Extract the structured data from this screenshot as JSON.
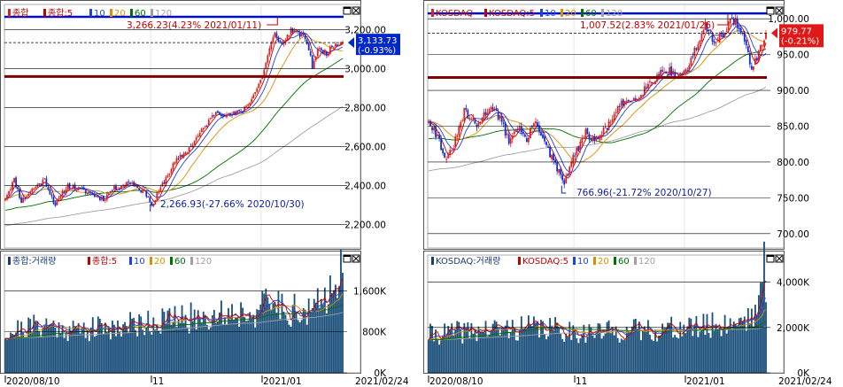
{
  "chart_data": [
    {
      "type": "candlestick",
      "panel": "left-price",
      "legend": {
        "main": "종합",
        "ma_prefix": "종합:5",
        "ma": [
          "10",
          "20",
          "60",
          "120"
        ]
      },
      "colors": {
        "up": "#e02020",
        "down": "#1030d0",
        "ma5": "#c00000",
        "ma10": "#2040e0",
        "ma20": "#d89000",
        "ma60": "#007000",
        "ma120": "#a0a0a0",
        "hline_blue": "#0010c0",
        "hline_red": "#800000"
      },
      "y_ticks": [
        "3,200.00",
        "3,000.00",
        "2,800.00",
        "2,600.00",
        "2,400.00",
        "2,200.00"
      ],
      "ylim": [
        2080,
        3330
      ],
      "high_annotation": "3,266.23(4.23% 2021/01/11)",
      "low_annotation": "2,266.93(-27.66% 2020/10/30)",
      "current": {
        "price": "3,133.73",
        "change": "(-0.93%)"
      },
      "hlines": [
        3266.23,
        2960
      ],
      "x_labels": [
        "2020/08/10",
        "11",
        "2021/01",
        "2021/02/24"
      ],
      "keyframes": [
        [
          0,
          2340
        ],
        [
          5,
          2430
        ],
        [
          9,
          2320
        ],
        [
          15,
          2380
        ],
        [
          22,
          2430
        ],
        [
          28,
          2300
        ],
        [
          35,
          2400
        ],
        [
          45,
          2370
        ],
        [
          55,
          2330
        ],
        [
          60,
          2380
        ],
        [
          70,
          2420
        ],
        [
          80,
          2350
        ],
        [
          82,
          2290
        ],
        [
          85,
          2350
        ],
        [
          90,
          2440
        ],
        [
          95,
          2520
        ],
        [
          102,
          2580
        ],
        [
          110,
          2680
        ],
        [
          118,
          2780
        ],
        [
          125,
          2760
        ],
        [
          132,
          2780
        ],
        [
          136,
          2820
        ],
        [
          140,
          2880
        ],
        [
          144,
          2960
        ],
        [
          148,
          3100
        ],
        [
          151,
          3180
        ],
        [
          155,
          3120
        ],
        [
          160,
          3200
        ],
        [
          164,
          3180
        ],
        [
          168,
          3160
        ],
        [
          170,
          3100
        ],
        [
          172,
          3010
        ],
        [
          175,
          3100
        ],
        [
          180,
          3080
        ],
        [
          185,
          3130
        ],
        [
          189,
          3134
        ]
      ]
    },
    {
      "type": "bar",
      "panel": "left-volume",
      "legend": {
        "main": "종합:거래량",
        "ma_prefix": "종합:5",
        "ma": [
          "10",
          "20",
          "60",
          "120"
        ]
      },
      "y_ticks": [
        "1,600K",
        "800K",
        "0K"
      ],
      "ylim": [
        0,
        2300
      ],
      "x_labels": [
        "2020/08/10",
        "11",
        "2021/01",
        "2021/02/24"
      ],
      "keyframes": [
        [
          0,
          750
        ],
        [
          20,
          900
        ],
        [
          40,
          800
        ],
        [
          60,
          850
        ],
        [
          80,
          950
        ],
        [
          100,
          1000
        ],
        [
          120,
          1100
        ],
        [
          140,
          1150
        ],
        [
          150,
          1300
        ],
        [
          160,
          1200
        ],
        [
          170,
          1100
        ],
        [
          180,
          1400
        ],
        [
          185,
          2000
        ],
        [
          189,
          1800
        ]
      ]
    },
    {
      "type": "candlestick",
      "panel": "right-price",
      "legend": {
        "main": "KOSDAQ",
        "ma_prefix": "KOSDAQ:5",
        "ma": [
          "10",
          "20",
          "60",
          "120"
        ]
      },
      "y_ticks": [
        "1,000.00",
        "950.00",
        "900.00",
        "850.00",
        "800.00",
        "750.00",
        "700.00"
      ],
      "ylim": [
        680,
        1020
      ],
      "high_annotation": "1,007.52(2.83% 2021/01/26)",
      "low_annotation": "766.96(-21.72% 2020/10/27)",
      "current": {
        "price": "979.77",
        "change": "(-0.21%)"
      },
      "hlines": [
        1007.52,
        918
      ],
      "x_labels": [
        "2020/08/10",
        "11",
        "2021/01",
        "2021/02/24"
      ],
      "keyframes": [
        [
          0,
          860
        ],
        [
          6,
          830
        ],
        [
          10,
          800
        ],
        [
          15,
          830
        ],
        [
          20,
          870
        ],
        [
          27,
          850
        ],
        [
          35,
          880
        ],
        [
          40,
          860
        ],
        [
          45,
          830
        ],
        [
          50,
          850
        ],
        [
          55,
          830
        ],
        [
          60,
          860
        ],
        [
          66,
          820
        ],
        [
          72,
          790
        ],
        [
          76,
          770
        ],
        [
          80,
          800
        ],
        [
          88,
          840
        ],
        [
          94,
          830
        ],
        [
          100,
          850
        ],
        [
          108,
          880
        ],
        [
          116,
          890
        ],
        [
          124,
          910
        ],
        [
          132,
          930
        ],
        [
          140,
          920
        ],
        [
          145,
          930
        ],
        [
          150,
          960
        ],
        [
          155,
          990
        ],
        [
          160,
          970
        ],
        [
          166,
          980
        ],
        [
          170,
          1000
        ],
        [
          174,
          990
        ],
        [
          178,
          960
        ],
        [
          181,
          930
        ],
        [
          185,
          950
        ],
        [
          189,
          980
        ]
      ]
    },
    {
      "type": "bar",
      "panel": "right-volume",
      "legend": {
        "main": "KOSDAQ:거래량",
        "ma_prefix": "KOSDAQ:5",
        "ma": [
          "10",
          "20",
          "60",
          "120"
        ]
      },
      "y_ticks": [
        "4,000K",
        "2,000K",
        "0K"
      ],
      "ylim": [
        0,
        5200
      ],
      "x_labels": [
        "2020/08/10",
        "11",
        "2021/01",
        "2021/02/24"
      ],
      "keyframes": [
        [
          0,
          1600
        ],
        [
          30,
          1800
        ],
        [
          60,
          1900
        ],
        [
          90,
          1700
        ],
        [
          120,
          1800
        ],
        [
          150,
          1900
        ],
        [
          170,
          2100
        ],
        [
          180,
          2400
        ],
        [
          186,
          3000
        ],
        [
          188,
          5100
        ],
        [
          189,
          3200
        ]
      ]
    }
  ]
}
